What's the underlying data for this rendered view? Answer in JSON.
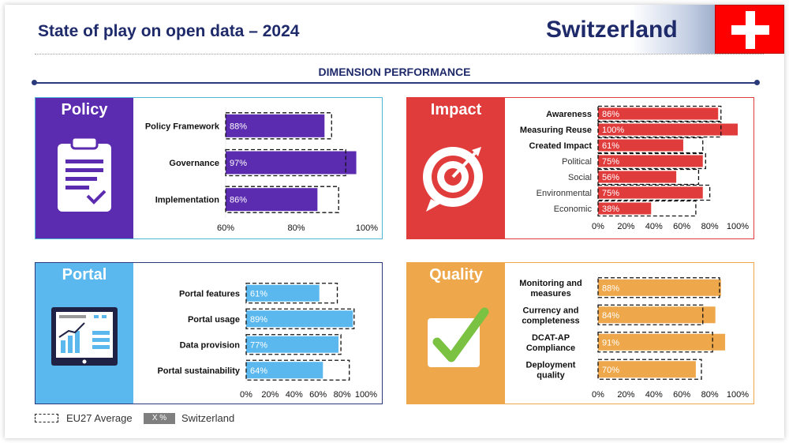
{
  "header": {
    "title": "State of play on open data – 2024",
    "country": "Switzerland",
    "section_title": "DIMENSION PERFORMANCE"
  },
  "colors": {
    "policy": "#5b2bb0",
    "impact": "#e03c3c",
    "portal": "#5bb8ee",
    "quality": "#eea74a",
    "navy": "#1f2a6b"
  },
  "legend": {
    "eu_label": "EU27 Average",
    "value_box": "X %",
    "country_label": "Switzerland"
  },
  "chart_data": [
    {
      "type": "bar",
      "panel_title": "Policy",
      "icon": "clipboard-check-icon",
      "orientation": "horizontal",
      "categories": [
        "Policy Framework",
        "Governance",
        "Implementation"
      ],
      "values": [
        88,
        97,
        86
      ],
      "eu_average": [
        90,
        94,
        92
      ],
      "value_labels": [
        "88%",
        "97%",
        "86%"
      ],
      "bold_categories": [
        true,
        true,
        true
      ],
      "xlim": [
        60,
        100
      ],
      "xticks": [
        60,
        80,
        100
      ],
      "xtick_labels": [
        "60%",
        "80%",
        "100%"
      ]
    },
    {
      "type": "bar",
      "panel_title": "Impact",
      "icon": "target-arrow-icon",
      "orientation": "horizontal",
      "categories": [
        "Awareness",
        "Measuring Reuse",
        "Created Impact",
        "Political",
        "Social",
        "Environmental",
        "Economic"
      ],
      "values": [
        86,
        100,
        61,
        75,
        56,
        75,
        38
      ],
      "eu_average": [
        88,
        88,
        75,
        77,
        72,
        80,
        70
      ],
      "value_labels": [
        "86%",
        "100%",
        "61%",
        "75%",
        "56%",
        "75%",
        "38%"
      ],
      "bold_categories": [
        true,
        true,
        true,
        false,
        false,
        false,
        false
      ],
      "xlim": [
        0,
        100
      ],
      "xticks": [
        0,
        20,
        40,
        60,
        80,
        100
      ],
      "xtick_labels": [
        "0%",
        "20%",
        "40%",
        "60%",
        "80%",
        "100%"
      ]
    },
    {
      "type": "bar",
      "panel_title": "Portal",
      "icon": "dashboard-screen-icon",
      "orientation": "horizontal",
      "categories": [
        "Portal features",
        "Portal usage",
        "Data provision",
        "Portal sustainability"
      ],
      "values": [
        61,
        89,
        77,
        64
      ],
      "eu_average": [
        76,
        90,
        79,
        86
      ],
      "value_labels": [
        "61%",
        "89%",
        "77%",
        "64%"
      ],
      "bold_categories": [
        true,
        true,
        true,
        true
      ],
      "xlim": [
        0,
        100
      ],
      "xticks": [
        0,
        20,
        40,
        60,
        80,
        100
      ],
      "xtick_labels": [
        "0%",
        "20%",
        "40%",
        "60%",
        "80%",
        "100%"
      ]
    },
    {
      "type": "bar",
      "panel_title": "Quality",
      "icon": "checkbox-check-icon",
      "orientation": "horizontal",
      "categories": [
        [
          "Monitoring and",
          "measures"
        ],
        [
          "Currency and",
          "completeness"
        ],
        [
          "DCAT-AP",
          "Compliance"
        ],
        [
          "Deployment",
          "quality"
        ]
      ],
      "values": [
        88,
        84,
        91,
        70
      ],
      "eu_average": [
        87,
        75,
        82,
        74
      ],
      "value_labels": [
        "88%",
        "84%",
        "91%",
        "70%"
      ],
      "bold_categories": [
        true,
        true,
        true,
        true
      ],
      "xlim": [
        0,
        100
      ],
      "xticks": [
        0,
        20,
        40,
        60,
        80,
        100
      ],
      "xtick_labels": [
        "0%",
        "20%",
        "40%",
        "60%",
        "80%",
        "100%"
      ]
    }
  ]
}
